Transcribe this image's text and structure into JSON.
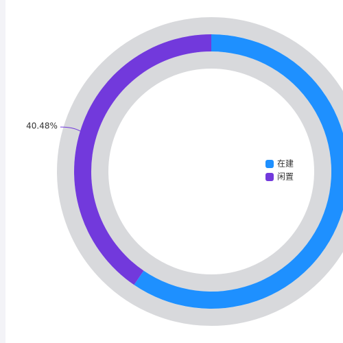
{
  "chart_data": {
    "type": "donut",
    "categories": [
      "在建",
      "闲置"
    ],
    "values": [
      59.52,
      40.48
    ],
    "value_labels": [
      null,
      "40.48%"
    ],
    "colors": [
      "#1e90ff",
      "#7239dc"
    ],
    "legend": "right"
  }
}
